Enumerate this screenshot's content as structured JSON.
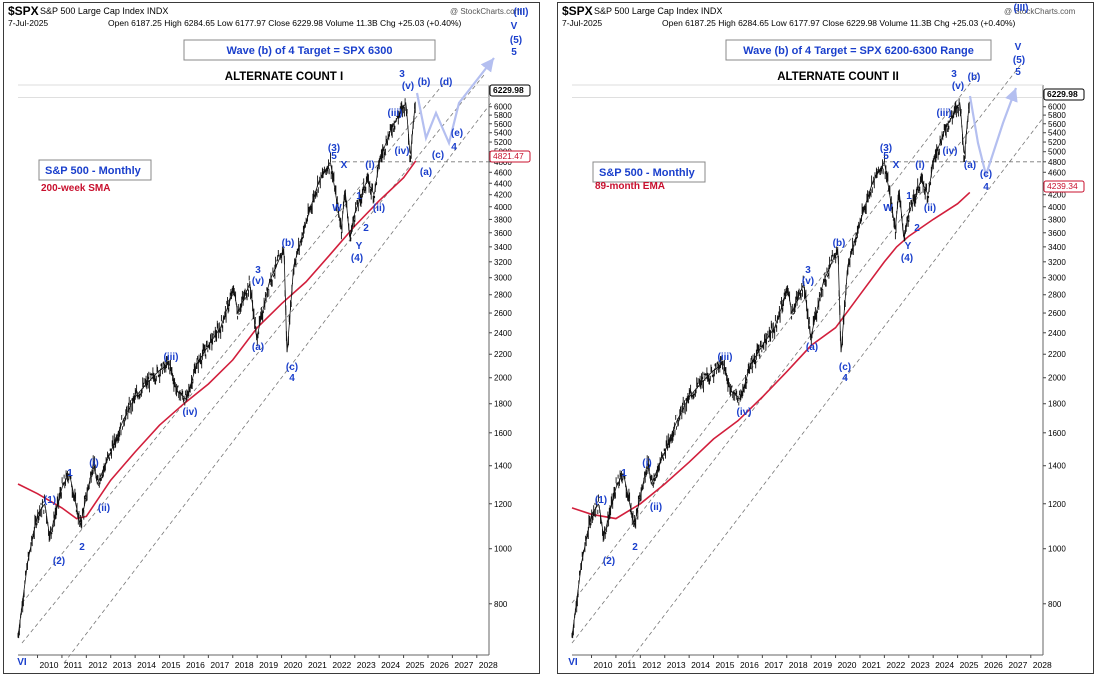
{
  "panels": [
    {
      "symbol": "$SPX",
      "name": "S&P 500 Large Cap Index INDX",
      "watermark": "@ StockCharts.com",
      "date": "7-Jul-2025",
      "stats": "Open 6187.25   High 6284.65   Low 6177.97   Close 6229.98   Volume 11.3B   Chg +25.03 (+0.40%)",
      "target_box": "Wave (b) of 4 Target = SPX 6300",
      "count_title": "ALTERNATE COUNT  I",
      "legend_title": "S&P 500 - Monthly",
      "ma_label": "200-week SMA",
      "last_value_label": "6229.98",
      "ma_value_label": "4821.47",
      "wave_labels": [
        "VI",
        "(1)",
        "(2)",
        "1",
        "(i)",
        "(ii)",
        "2",
        "(iii)",
        "(iv)",
        "(a)",
        "3",
        "(v)",
        "(b)",
        "(c)",
        "4",
        "(3)",
        "5",
        "X",
        "W",
        "1",
        "(i)",
        "(ii)",
        "2",
        "Y",
        "(4)",
        "(iii)",
        "(iv)",
        "3",
        "(v)",
        "(b)",
        "(a)",
        "(c)",
        "(d)",
        "(e)",
        "4",
        "(III)",
        "V",
        "(5)",
        "5"
      ]
    },
    {
      "symbol": "$SPX",
      "name": "S&P 500 Large Cap Index INDX",
      "watermark": "@ StockCharts.com",
      "date": "7-Jul-2025",
      "stats": "Open 6187.25   High 6284.65   Low 6177.97   Close 6229.98   Volume 11.3B   Chg +25.03 (+0.40%)",
      "target_box": "Wave (b) of 4 Target = SPX 6200-6300 Range",
      "count_title": "ALTERNATE COUNT II",
      "legend_title": "S&P 500 - Monthly",
      "ma_label": "89-month EMA",
      "last_value_label": "6229.98",
      "ma_value_label": "4239.34",
      "wave_labels": [
        "VI",
        "(1)",
        "(2)",
        "1",
        "(i)",
        "(ii)",
        "2",
        "(iii)",
        "(iv)",
        "(a)",
        "3",
        "(v)",
        "(b)",
        "(c)",
        "4",
        "(3)",
        "5",
        "X",
        "W",
        "1",
        "(i)",
        "(ii)",
        "2",
        "Y",
        "(4)",
        "(iii)",
        "(iv)",
        "3",
        "(v)",
        "(b)",
        "(a)",
        "(c)",
        "4",
        "(III)",
        "V",
        "(5)",
        "5"
      ]
    }
  ],
  "chart_data": [
    {
      "type": "line",
      "title": "ALTERNATE COUNT  I",
      "scale": "log",
      "x_ticks": [
        "2010",
        "2011",
        "2012",
        "2013",
        "2014",
        "2015",
        "2016",
        "2017",
        "2018",
        "2019",
        "2020",
        "2021",
        "2022",
        "2023",
        "2024",
        "2025",
        "2026",
        "2027",
        "2028"
      ],
      "y_ticks": [
        800,
        1000,
        1200,
        1400,
        1600,
        1800,
        2000,
        2200,
        2400,
        2600,
        2800,
        3000,
        3200,
        3400,
        3600,
        3800,
        4000,
        4200,
        4400,
        4600,
        4800,
        5000,
        5200,
        5400,
        5600,
        5800,
        6000
      ],
      "series": [
        {
          "name": "S&P 500 - Monthly",
          "x": [
            2009.2,
            2009.6,
            2010.0,
            2010.3,
            2010.5,
            2011.0,
            2011.3,
            2011.75,
            2012.3,
            2012.45,
            2013.0,
            2013.5,
            2014.0,
            2014.5,
            2015.0,
            2015.4,
            2015.7,
            2016.1,
            2016.5,
            2017.0,
            2017.5,
            2018.05,
            2018.2,
            2018.7,
            2018.98,
            2019.5,
            2020.1,
            2020.22,
            2020.5,
            2021.0,
            2021.5,
            2022.0,
            2022.45,
            2022.6,
            2022.8,
            2023.0,
            2023.5,
            2023.8,
            2024.0,
            2024.5,
            2025.1,
            2025.27,
            2025.5
          ],
          "y": [
            700,
            950,
            1150,
            1200,
            1050,
            1280,
            1360,
            1100,
            1420,
            1300,
            1480,
            1680,
            1850,
            1960,
            2060,
            2120,
            1900,
            1830,
            2100,
            2280,
            2450,
            2870,
            2600,
            2930,
            2350,
            2950,
            3380,
            2200,
            3150,
            3750,
            4400,
            4800,
            3650,
            4300,
            3500,
            3900,
            4450,
            4200,
            4800,
            5500,
            6100,
            4900,
            6230
          ]
        },
        {
          "name": "200-week SMA",
          "x": [
            2009.2,
            2010.0,
            2011.0,
            2011.6,
            2012.0,
            2013.0,
            2014.0,
            2015.0,
            2016.0,
            2017.0,
            2018.0,
            2019.0,
            2020.0,
            2021.0,
            2022.0,
            2023.0,
            2024.0,
            2025.0,
            2025.5
          ],
          "y": [
            1300,
            1250,
            1180,
            1130,
            1140,
            1320,
            1480,
            1650,
            1800,
            1950,
            2150,
            2450,
            2700,
            2950,
            3300,
            3700,
            4100,
            4500,
            4820
          ]
        }
      ],
      "ylim": [
        650,
        6500
      ],
      "xlim": [
        2009.2,
        2028.5
      ]
    },
    {
      "type": "line",
      "title": "ALTERNATE COUNT II",
      "scale": "log",
      "x_ticks": [
        "2010",
        "2011",
        "2012",
        "2013",
        "2014",
        "2015",
        "2016",
        "2017",
        "2018",
        "2019",
        "2020",
        "2021",
        "2022",
        "2023",
        "2024",
        "2025",
        "2026",
        "2027",
        "2028"
      ],
      "y_ticks": [
        800,
        1000,
        1200,
        1400,
        1600,
        1800,
        2000,
        2200,
        2400,
        2600,
        2800,
        3000,
        3200,
        3400,
        3600,
        3800,
        4000,
        4200,
        4400,
        4600,
        4800,
        5000,
        5200,
        5400,
        5600,
        5800,
        6000
      ],
      "series": [
        {
          "name": "S&P 500 - Monthly",
          "x": [
            2009.2,
            2009.6,
            2010.0,
            2010.3,
            2010.5,
            2011.0,
            2011.3,
            2011.75,
            2012.3,
            2012.45,
            2013.0,
            2013.5,
            2014.0,
            2014.5,
            2015.0,
            2015.4,
            2015.7,
            2016.1,
            2016.5,
            2017.0,
            2017.5,
            2018.05,
            2018.2,
            2018.7,
            2018.98,
            2019.5,
            2020.1,
            2020.22,
            2020.5,
            2021.0,
            2021.5,
            2022.0,
            2022.45,
            2022.6,
            2022.8,
            2023.0,
            2023.5,
            2023.8,
            2024.0,
            2024.5,
            2025.1,
            2025.27,
            2025.5
          ],
          "y": [
            700,
            950,
            1150,
            1200,
            1050,
            1280,
            1360,
            1100,
            1420,
            1300,
            1480,
            1680,
            1850,
            1960,
            2060,
            2120,
            1900,
            1830,
            2100,
            2280,
            2450,
            2870,
            2600,
            2930,
            2350,
            2950,
            3380,
            2200,
            3150,
            3750,
            4400,
            4800,
            3650,
            4300,
            3500,
            3900,
            4450,
            4200,
            4800,
            5500,
            6100,
            4900,
            6230
          ]
        },
        {
          "name": "89-month EMA",
          "x": [
            2009.2,
            2010.0,
            2011.0,
            2012.0,
            2013.0,
            2014.0,
            2015.0,
            2016.0,
            2017.0,
            2018.0,
            2019.0,
            2020.0,
            2021.0,
            2022.0,
            2022.5,
            2023.0,
            2024.0,
            2025.0,
            2025.5
          ],
          "y": [
            1180,
            1150,
            1130,
            1200,
            1300,
            1420,
            1560,
            1680,
            1850,
            2050,
            2280,
            2450,
            2800,
            3200,
            3400,
            3550,
            3800,
            4050,
            4239
          ]
        }
      ],
      "ylim": [
        650,
        6500
      ],
      "xlim": [
        2009.2,
        2028.5
      ]
    }
  ]
}
